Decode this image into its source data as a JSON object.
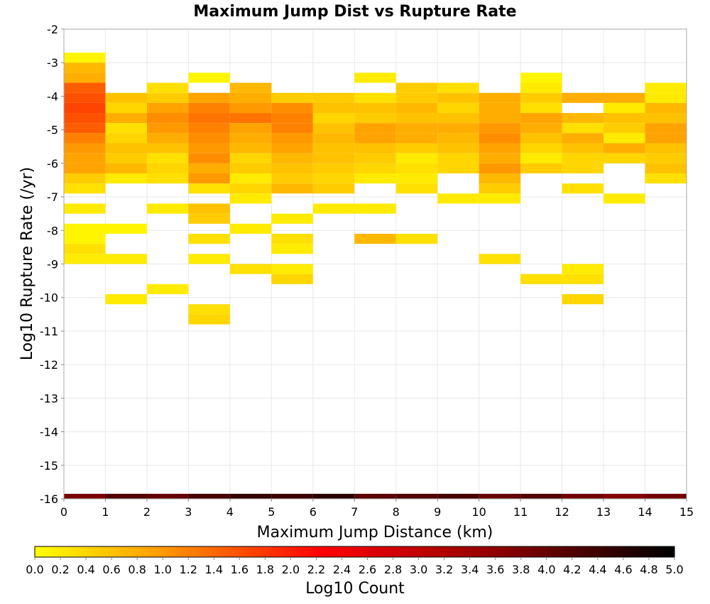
{
  "chart_data": {
    "type": "heatmap",
    "title": "Maximum Jump Dist vs Rupture Rate",
    "xlabel": "Maximum Jump Distance (km)",
    "ylabel": "Log10 Rupture Rate (/yr)",
    "colorbar_label": "Log10 Count",
    "xlim": [
      0,
      15
    ],
    "ylim": [
      -16,
      -2
    ],
    "x_ticks": [
      "0",
      "1",
      "2",
      "3",
      "4",
      "5",
      "6",
      "7",
      "8",
      "9",
      "10",
      "11",
      "12",
      "13",
      "14",
      "15"
    ],
    "y_ticks": [
      "-2",
      "-3",
      "-4",
      "-5",
      "-6",
      "-7",
      "-8",
      "-9",
      "-10",
      "-11",
      "-12",
      "-13",
      "-14",
      "-15",
      "-16"
    ],
    "colorbar_range": [
      0,
      5
    ],
    "colorbar_ticks": [
      "0.0",
      "0.2",
      "0.4",
      "0.6",
      "0.8",
      "1.0",
      "1.2",
      "1.4",
      "1.6",
      "1.8",
      "2.0",
      "2.2",
      "2.4",
      "2.6",
      "2.8",
      "3.0",
      "3.2",
      "3.4",
      "3.6",
      "3.8",
      "4.0",
      "4.2",
      "4.4",
      "4.6",
      "4.8",
      "5.0"
    ],
    "colormap": [
      "#ffff00",
      "#ff9900",
      "#ff0000",
      "#990000",
      "#000000"
    ],
    "grid": true,
    "x_bin_width": 1,
    "y_bin_height": 0.3,
    "cells": [
      {
        "x": 0,
        "y": -2.85,
        "v": 0.1
      },
      {
        "x": 0,
        "y": -3.15,
        "v": 0.7
      },
      {
        "x": 0,
        "y": -3.45,
        "v": 0.8
      },
      {
        "x": 0,
        "y": -3.75,
        "v": 1.5
      },
      {
        "x": 0,
        "y": -4.05,
        "v": 1.6
      },
      {
        "x": 0,
        "y": -4.35,
        "v": 1.7
      },
      {
        "x": 0,
        "y": -4.65,
        "v": 1.6
      },
      {
        "x": 0,
        "y": -4.95,
        "v": 1.5
      },
      {
        "x": 0,
        "y": -5.25,
        "v": 1.2
      },
      {
        "x": 0,
        "y": -5.55,
        "v": 1.0
      },
      {
        "x": 0,
        "y": -5.85,
        "v": 0.9
      },
      {
        "x": 0,
        "y": -6.15,
        "v": 0.9
      },
      {
        "x": 0,
        "y": -6.45,
        "v": 0.5
      },
      {
        "x": 0,
        "y": -6.75,
        "v": 0.3
      },
      {
        "x": 0,
        "y": -7.35,
        "v": 0.2
      },
      {
        "x": 0,
        "y": -7.95,
        "v": 0.1
      },
      {
        "x": 0,
        "y": -8.25,
        "v": 0.1
      },
      {
        "x": 0,
        "y": -8.55,
        "v": 0.3
      },
      {
        "x": 0,
        "y": -8.85,
        "v": 0.2
      },
      {
        "x": 1,
        "y": -4.05,
        "v": 0.6
      },
      {
        "x": 1,
        "y": -4.35,
        "v": 0.4
      },
      {
        "x": 1,
        "y": -4.65,
        "v": 0.8
      },
      {
        "x": 1,
        "y": -4.95,
        "v": 0.3
      },
      {
        "x": 1,
        "y": -5.25,
        "v": 0.4
      },
      {
        "x": 1,
        "y": -5.55,
        "v": 0.6
      },
      {
        "x": 1,
        "y": -5.85,
        "v": 0.5
      },
      {
        "x": 1,
        "y": -6.15,
        "v": 0.7
      },
      {
        "x": 1,
        "y": -6.45,
        "v": 0.2
      },
      {
        "x": 1,
        "y": -7.95,
        "v": 0.1
      },
      {
        "x": 1,
        "y": -8.85,
        "v": 0.2
      },
      {
        "x": 1,
        "y": -10.05,
        "v": 0.2
      },
      {
        "x": 2,
        "y": -3.75,
        "v": 0.3
      },
      {
        "x": 2,
        "y": -4.05,
        "v": 0.5
      },
      {
        "x": 2,
        "y": -4.35,
        "v": 0.9
      },
      {
        "x": 2,
        "y": -4.65,
        "v": 1.1
      },
      {
        "x": 2,
        "y": -4.95,
        "v": 1.0
      },
      {
        "x": 2,
        "y": -5.25,
        "v": 0.8
      },
      {
        "x": 2,
        "y": -5.55,
        "v": 0.6
      },
      {
        "x": 2,
        "y": -5.85,
        "v": 0.3
      },
      {
        "x": 2,
        "y": -6.15,
        "v": 0.4
      },
      {
        "x": 2,
        "y": -6.45,
        "v": 0.3
      },
      {
        "x": 2,
        "y": -7.35,
        "v": 0.2
      },
      {
        "x": 2,
        "y": -9.75,
        "v": 0.2
      },
      {
        "x": 3,
        "y": -3.45,
        "v": 0.1
      },
      {
        "x": 3,
        "y": -4.05,
        "v": 0.9
      },
      {
        "x": 3,
        "y": -4.35,
        "v": 1.2
      },
      {
        "x": 3,
        "y": -4.65,
        "v": 1.3
      },
      {
        "x": 3,
        "y": -4.95,
        "v": 1.2
      },
      {
        "x": 3,
        "y": -5.25,
        "v": 1.1
      },
      {
        "x": 3,
        "y": -5.55,
        "v": 1.0
      },
      {
        "x": 3,
        "y": -5.85,
        "v": 1.1
      },
      {
        "x": 3,
        "y": -6.15,
        "v": 0.8
      },
      {
        "x": 3,
        "y": -6.45,
        "v": 1.0
      },
      {
        "x": 3,
        "y": -6.75,
        "v": 0.3
      },
      {
        "x": 3,
        "y": -7.35,
        "v": 0.6
      },
      {
        "x": 3,
        "y": -7.65,
        "v": 0.5
      },
      {
        "x": 3,
        "y": -8.25,
        "v": 0.3
      },
      {
        "x": 3,
        "y": -8.85,
        "v": 0.2
      },
      {
        "x": 3,
        "y": -10.35,
        "v": 0.3
      },
      {
        "x": 3,
        "y": -10.65,
        "v": 0.4
      },
      {
        "x": 4,
        "y": -3.75,
        "v": 0.7
      },
      {
        "x": 4,
        "y": -4.05,
        "v": 0.8
      },
      {
        "x": 4,
        "y": -4.35,
        "v": 1.0
      },
      {
        "x": 4,
        "y": -4.65,
        "v": 1.3
      },
      {
        "x": 4,
        "y": -4.95,
        "v": 0.9
      },
      {
        "x": 4,
        "y": -5.25,
        "v": 0.8
      },
      {
        "x": 4,
        "y": -5.55,
        "v": 0.7
      },
      {
        "x": 4,
        "y": -5.85,
        "v": 0.4
      },
      {
        "x": 4,
        "y": -6.15,
        "v": 0.5
      },
      {
        "x": 4,
        "y": -6.45,
        "v": 0.2
      },
      {
        "x": 4,
        "y": -6.75,
        "v": 0.4
      },
      {
        "x": 4,
        "y": -7.05,
        "v": 0.2
      },
      {
        "x": 4,
        "y": -7.95,
        "v": 0.2
      },
      {
        "x": 4,
        "y": -9.15,
        "v": 0.3
      },
      {
        "x": 5,
        "y": -4.05,
        "v": 0.5
      },
      {
        "x": 5,
        "y": -4.35,
        "v": 1.1
      },
      {
        "x": 5,
        "y": -4.65,
        "v": 1.2
      },
      {
        "x": 5,
        "y": -4.95,
        "v": 1.2
      },
      {
        "x": 5,
        "y": -5.25,
        "v": 1.0
      },
      {
        "x": 5,
        "y": -5.55,
        "v": 0.9
      },
      {
        "x": 5,
        "y": -5.85,
        "v": 0.7
      },
      {
        "x": 5,
        "y": -6.15,
        "v": 0.6
      },
      {
        "x": 5,
        "y": -6.45,
        "v": 0.5
      },
      {
        "x": 5,
        "y": -6.75,
        "v": 0.7
      },
      {
        "x": 5,
        "y": -7.65,
        "v": 0.2
      },
      {
        "x": 5,
        "y": -8.25,
        "v": 0.3
      },
      {
        "x": 5,
        "y": -8.55,
        "v": 0.2
      },
      {
        "x": 5,
        "y": -9.15,
        "v": 0.2
      },
      {
        "x": 5,
        "y": -9.45,
        "v": 0.4
      },
      {
        "x": 6,
        "y": -4.05,
        "v": 0.5
      },
      {
        "x": 6,
        "y": -4.35,
        "v": 0.6
      },
      {
        "x": 6,
        "y": -4.65,
        "v": 0.4
      },
      {
        "x": 6,
        "y": -4.95,
        "v": 0.6
      },
      {
        "x": 6,
        "y": -5.25,
        "v": 0.7
      },
      {
        "x": 6,
        "y": -5.55,
        "v": 0.6
      },
      {
        "x": 6,
        "y": -5.85,
        "v": 0.6
      },
      {
        "x": 6,
        "y": -6.15,
        "v": 0.5
      },
      {
        "x": 6,
        "y": -6.45,
        "v": 0.4
      },
      {
        "x": 6,
        "y": -6.75,
        "v": 0.5
      },
      {
        "x": 6,
        "y": -7.35,
        "v": 0.2
      },
      {
        "x": 7,
        "y": -3.45,
        "v": 0.2
      },
      {
        "x": 7,
        "y": -4.05,
        "v": 0.3
      },
      {
        "x": 7,
        "y": -4.35,
        "v": 0.6
      },
      {
        "x": 7,
        "y": -4.65,
        "v": 0.5
      },
      {
        "x": 7,
        "y": -4.95,
        "v": 0.9
      },
      {
        "x": 7,
        "y": -5.25,
        "v": 0.9
      },
      {
        "x": 7,
        "y": -5.55,
        "v": 0.6
      },
      {
        "x": 7,
        "y": -5.85,
        "v": 0.5
      },
      {
        "x": 7,
        "y": -6.15,
        "v": 0.4
      },
      {
        "x": 7,
        "y": -6.45,
        "v": 0.2
      },
      {
        "x": 7,
        "y": -7.35,
        "v": 0.2
      },
      {
        "x": 7,
        "y": -8.25,
        "v": 0.7
      },
      {
        "x": 8,
        "y": -3.75,
        "v": 0.5
      },
      {
        "x": 8,
        "y": -4.05,
        "v": 0.5
      },
      {
        "x": 8,
        "y": -4.35,
        "v": 0.7
      },
      {
        "x": 8,
        "y": -4.65,
        "v": 0.6
      },
      {
        "x": 8,
        "y": -4.95,
        "v": 0.8
      },
      {
        "x": 8,
        "y": -5.25,
        "v": 0.8
      },
      {
        "x": 8,
        "y": -5.55,
        "v": 0.5
      },
      {
        "x": 8,
        "y": -5.85,
        "v": 0.2
      },
      {
        "x": 8,
        "y": -6.15,
        "v": 0.3
      },
      {
        "x": 8,
        "y": -6.45,
        "v": 0.2
      },
      {
        "x": 8,
        "y": -6.75,
        "v": 0.3
      },
      {
        "x": 8,
        "y": -8.25,
        "v": 0.3
      },
      {
        "x": 9,
        "y": -3.75,
        "v": 0.3
      },
      {
        "x": 9,
        "y": -4.05,
        "v": 0.6
      },
      {
        "x": 9,
        "y": -4.35,
        "v": 0.4
      },
      {
        "x": 9,
        "y": -4.65,
        "v": 0.6
      },
      {
        "x": 9,
        "y": -4.95,
        "v": 0.8
      },
      {
        "x": 9,
        "y": -5.25,
        "v": 0.7
      },
      {
        "x": 9,
        "y": -5.55,
        "v": 0.6
      },
      {
        "x": 9,
        "y": -5.85,
        "v": 0.4
      },
      {
        "x": 9,
        "y": -6.15,
        "v": 0.4
      },
      {
        "x": 9,
        "y": -7.05,
        "v": 0.2
      },
      {
        "x": 10,
        "y": -4.05,
        "v": 0.8
      },
      {
        "x": 10,
        "y": -4.35,
        "v": 0.8
      },
      {
        "x": 10,
        "y": -4.65,
        "v": 0.8
      },
      {
        "x": 10,
        "y": -4.95,
        "v": 1.0
      },
      {
        "x": 10,
        "y": -5.25,
        "v": 1.1
      },
      {
        "x": 10,
        "y": -5.55,
        "v": 0.9
      },
      {
        "x": 10,
        "y": -5.85,
        "v": 0.8
      },
      {
        "x": 10,
        "y": -6.15,
        "v": 1.0
      },
      {
        "x": 10,
        "y": -6.45,
        "v": 0.7
      },
      {
        "x": 10,
        "y": -6.75,
        "v": 0.5
      },
      {
        "x": 10,
        "y": -7.05,
        "v": 0.2
      },
      {
        "x": 10,
        "y": -8.85,
        "v": 0.3
      },
      {
        "x": 11,
        "y": -3.45,
        "v": 0.1
      },
      {
        "x": 11,
        "y": -3.75,
        "v": 0.2
      },
      {
        "x": 11,
        "y": -4.05,
        "v": 0.5
      },
      {
        "x": 11,
        "y": -4.35,
        "v": 0.3
      },
      {
        "x": 11,
        "y": -4.65,
        "v": 0.9
      },
      {
        "x": 11,
        "y": -4.95,
        "v": 0.8
      },
      {
        "x": 11,
        "y": -5.25,
        "v": 0.6
      },
      {
        "x": 11,
        "y": -5.55,
        "v": 0.4
      },
      {
        "x": 11,
        "y": -5.85,
        "v": 0.2
      },
      {
        "x": 11,
        "y": -6.15,
        "v": 0.5
      },
      {
        "x": 11,
        "y": -9.45,
        "v": 0.3
      },
      {
        "x": 12,
        "y": -4.05,
        "v": 0.8
      },
      {
        "x": 12,
        "y": -4.65,
        "v": 0.7
      },
      {
        "x": 12,
        "y": -4.95,
        "v": 0.3
      },
      {
        "x": 12,
        "y": -5.25,
        "v": 0.8
      },
      {
        "x": 12,
        "y": -5.55,
        "v": 0.6
      },
      {
        "x": 12,
        "y": -5.85,
        "v": 0.4
      },
      {
        "x": 12,
        "y": -6.15,
        "v": 0.4
      },
      {
        "x": 12,
        "y": -6.75,
        "v": 0.3
      },
      {
        "x": 12,
        "y": -9.15,
        "v": 0.2
      },
      {
        "x": 12,
        "y": -9.45,
        "v": 0.3
      },
      {
        "x": 12,
        "y": -10.05,
        "v": 0.4
      },
      {
        "x": 13,
        "y": -4.05,
        "v": 0.8
      },
      {
        "x": 13,
        "y": -4.35,
        "v": 0.2
      },
      {
        "x": 13,
        "y": -4.65,
        "v": 0.6
      },
      {
        "x": 13,
        "y": -4.95,
        "v": 0.5
      },
      {
        "x": 13,
        "y": -5.25,
        "v": 0.2
      },
      {
        "x": 13,
        "y": -5.55,
        "v": 0.8
      },
      {
        "x": 13,
        "y": -5.85,
        "v": 0.4
      },
      {
        "x": 13,
        "y": -7.05,
        "v": 0.2
      },
      {
        "x": 14,
        "y": -3.75,
        "v": 0.2
      },
      {
        "x": 14,
        "y": -4.05,
        "v": 0.2
      },
      {
        "x": 14,
        "y": -4.35,
        "v": 0.7
      },
      {
        "x": 14,
        "y": -4.65,
        "v": 0.6
      },
      {
        "x": 14,
        "y": -4.95,
        "v": 0.9
      },
      {
        "x": 14,
        "y": -5.25,
        "v": 0.9
      },
      {
        "x": 14,
        "y": -5.55,
        "v": 0.6
      },
      {
        "x": 14,
        "y": -5.85,
        "v": 0.5
      },
      {
        "x": 14,
        "y": -6.15,
        "v": 0.6
      },
      {
        "x": 14,
        "y": -6.45,
        "v": 0.3
      }
    ],
    "bottom_band": {
      "y": -16,
      "values": [
        3.8,
        4.2,
        4.0,
        4.3,
        4.5,
        4.4,
        4.6,
        4.1,
        4.2,
        4.3,
        4.0,
        4.2,
        3.9,
        3.7,
        3.9
      ]
    }
  }
}
